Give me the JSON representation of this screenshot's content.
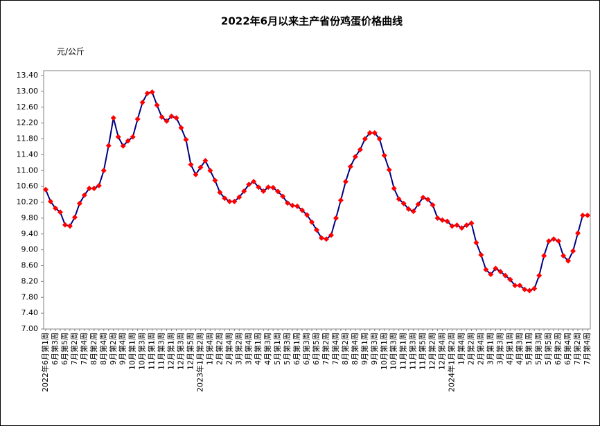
{
  "chart_data": {
    "type": "line",
    "title": "2022年6月以来主产省份鸡蛋价格曲线",
    "y_label": "元/公斤",
    "color": "#000080",
    "marker_color": "#ff0000",
    "ylim": [
      7.0,
      13.4
    ],
    "yticks": [
      {
        "value": 7.0,
        "label": "7.00"
      },
      {
        "value": 7.4,
        "label": "7.40"
      },
      {
        "value": 7.8,
        "label": "7.80"
      },
      {
        "value": 8.2,
        "label": "8.20"
      },
      {
        "value": 8.6,
        "label": "8.60"
      },
      {
        "value": 9.0,
        "label": "9.00"
      },
      {
        "value": 9.4,
        "label": "9.40"
      },
      {
        "value": 9.8,
        "label": "9.80"
      },
      {
        "value": 10.2,
        "label": "10.20"
      },
      {
        "value": 10.6,
        "label": "10.60"
      },
      {
        "value": 11.0,
        "label": "11.00"
      },
      {
        "value": 11.4,
        "label": "11.40"
      },
      {
        "value": 11.8,
        "label": "11.80"
      },
      {
        "value": 12.2,
        "label": "12.20"
      },
      {
        "value": 12.6,
        "label": "12.60"
      },
      {
        "value": 13.0,
        "label": "13.00"
      },
      {
        "value": 13.4,
        "label": "13.40"
      }
    ],
    "categories": [
      "2022年6月第1周",
      null,
      "6月第3周",
      null,
      "6月第5周",
      null,
      "7月第2周",
      null,
      "7月第4周",
      null,
      "8月第2周",
      null,
      "8月第4周",
      null,
      "9月第2周",
      null,
      "9月第4周",
      null,
      "10月第1周",
      null,
      "10月第3周",
      null,
      "11月第1周",
      null,
      "11月第3周",
      null,
      "12月第1周",
      null,
      "12月第3周",
      null,
      "12月第5周",
      null,
      "2023年1月第2周",
      null,
      "1月第4周",
      null,
      "2月第2周",
      null,
      "2月第4周",
      null,
      "3月第2周",
      null,
      "3月第4周",
      null,
      "4月第1周",
      null,
      "4月第3周",
      null,
      "5月第1周",
      null,
      "5月第3周",
      null,
      "6月第1周",
      null,
      "6月第3周",
      null,
      "6月第5周",
      null,
      "7月第2周",
      null,
      "7月第4周",
      null,
      "8月第2周",
      null,
      "8月第4周",
      null,
      "9月第1周",
      null,
      "9月第3周",
      null,
      "10月第1周",
      null,
      "10月第3周",
      null,
      "11月第1周",
      null,
      "11月第3周",
      null,
      "11月第5周",
      null,
      "12月第2周",
      null,
      "12月第4周",
      null,
      "2024年1月第2周",
      null,
      "1月第4周",
      null,
      "2月第2周",
      null,
      "2月第4周",
      null,
      "3月第1周",
      null,
      "3月第3周",
      null,
      "4月第1周",
      null,
      "4月第3周",
      null,
      "5月第1周",
      null,
      "5月第3周",
      null,
      "5月第5周",
      null,
      "6月第2周",
      null,
      "6月第4周",
      null,
      "7月第2周",
      null,
      "7月第4周"
    ],
    "values": [
      10.52,
      10.22,
      10.05,
      9.95,
      9.63,
      9.6,
      9.82,
      10.17,
      10.38,
      10.55,
      10.55,
      10.62,
      11.0,
      11.63,
      12.33,
      11.85,
      11.62,
      11.75,
      11.85,
      12.3,
      12.72,
      12.95,
      12.98,
      12.65,
      12.35,
      12.25,
      12.37,
      12.33,
      12.08,
      11.78,
      11.15,
      10.9,
      11.08,
      11.25,
      11.0,
      10.75,
      10.45,
      10.3,
      10.22,
      10.22,
      10.33,
      10.48,
      10.65,
      10.72,
      10.58,
      10.48,
      10.58,
      10.57,
      10.47,
      10.35,
      10.18,
      10.12,
      10.1,
      10.0,
      9.88,
      9.7,
      9.5,
      9.3,
      9.27,
      9.37,
      9.8,
      10.25,
      10.72,
      11.1,
      11.35,
      11.53,
      11.8,
      11.95,
      11.95,
      11.8,
      11.38,
      11.02,
      10.55,
      10.28,
      10.17,
      10.03,
      9.97,
      10.15,
      10.32,
      10.27,
      10.13,
      9.8,
      9.75,
      9.72,
      9.6,
      9.62,
      9.55,
      9.62,
      9.67,
      9.18,
      8.87,
      8.5,
      8.38,
      8.53,
      8.45,
      8.35,
      8.25,
      8.1,
      8.1,
      8.0,
      7.97,
      8.02,
      8.35,
      8.85,
      9.22,
      9.27,
      9.22,
      8.85,
      8.72,
      8.97,
      9.42,
      9.87,
      9.87
    ]
  }
}
